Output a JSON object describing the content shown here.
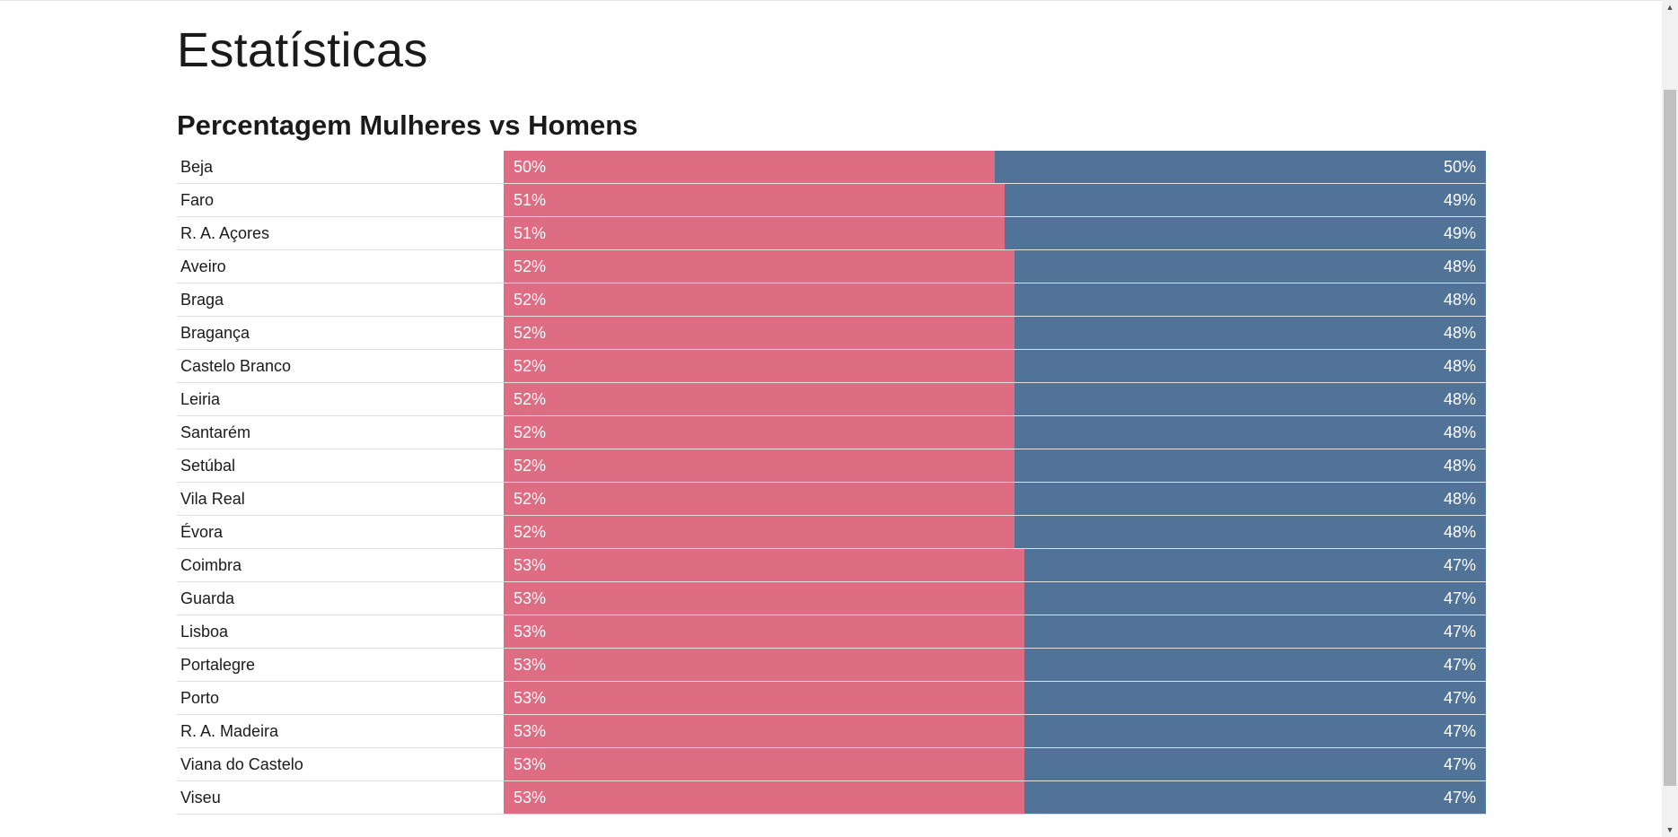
{
  "page": {
    "title": "Estatísticas"
  },
  "chart_data": {
    "type": "bar",
    "orientation": "horizontal-stacked",
    "title": "Percentagem Mulheres vs Homens",
    "series_colors": [
      "#de6c82",
      "#527398"
    ],
    "categories": [
      "Beja",
      "Faro",
      "R. A. Açores",
      "Aveiro",
      "Braga",
      "Bragança",
      "Castelo Branco",
      "Leiria",
      "Santarém",
      "Setúbal",
      "Vila Real",
      "Évora",
      "Coimbra",
      "Guarda",
      "Lisboa",
      "Portalegre",
      "Porto",
      "R. A. Madeira",
      "Viana do Castelo",
      "Viseu"
    ],
    "series": [
      {
        "values": [
          50,
          51,
          51,
          52,
          52,
          52,
          52,
          52,
          52,
          52,
          52,
          52,
          53,
          53,
          53,
          53,
          53,
          53,
          53,
          53
        ]
      },
      {
        "values": [
          50,
          49,
          49,
          48,
          48,
          48,
          48,
          48,
          48,
          48,
          48,
          48,
          47,
          47,
          47,
          47,
          47,
          47,
          47,
          47
        ]
      }
    ],
    "labels": {
      "series_0": [
        "50%",
        "51%",
        "51%",
        "52%",
        "52%",
        "52%",
        "52%",
        "52%",
        "52%",
        "52%",
        "52%",
        "52%",
        "53%",
        "53%",
        "53%",
        "53%",
        "53%",
        "53%",
        "53%",
        "53%"
      ],
      "series_1": [
        "50%",
        "49%",
        "49%",
        "48%",
        "48%",
        "48%",
        "48%",
        "48%",
        "48%",
        "48%",
        "48%",
        "48%",
        "47%",
        "47%",
        "47%",
        "47%",
        "47%",
        "47%",
        "47%",
        "47%"
      ]
    }
  }
}
